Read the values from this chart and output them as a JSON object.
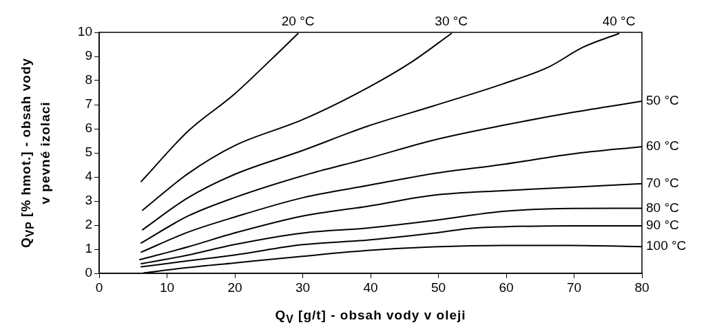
{
  "chart_data": {
    "type": "line",
    "xlabel": "Q$_{V}$ [g/t] - obsah vody v oleji",
    "ylabel": "Q$_{VP}$ [% hmot.] - obsah vody\nv pevné izolaci",
    "xlim": [
      0,
      80
    ],
    "ylim": [
      0,
      10
    ],
    "xticks": [
      0,
      10,
      20,
      30,
      40,
      50,
      60,
      70,
      80
    ],
    "yticks": [
      0,
      1,
      2,
      3,
      4,
      5,
      6,
      7,
      8,
      9,
      10
    ],
    "grid": false,
    "legend": false,
    "marker": "none",
    "line_style": "solid",
    "series": [
      {
        "name": "20 °C",
        "color": "#000000",
        "x": [
          6.2,
          13.1,
          19.9,
          25.3,
          29.3
        ],
        "values": [
          3.81,
          5.9,
          7.43,
          8.86,
          9.95
        ]
      },
      {
        "name": "30 °C",
        "color": "#000000",
        "x": [
          6.4,
          13.1,
          19.9,
          30,
          39.5,
          46,
          51.9
        ],
        "values": [
          2.62,
          4.14,
          5.29,
          6.38,
          7.69,
          8.76,
          9.95
        ]
      },
      {
        "name": "40 °C",
        "color": "#000000",
        "x": [
          6.4,
          13.1,
          19.9,
          30,
          39.5,
          49.3,
          59.5,
          66.3,
          71.3,
          76.6
        ],
        "values": [
          1.81,
          3.14,
          4.1,
          5.1,
          6.1,
          6.95,
          7.86,
          8.57,
          9.38,
          9.95
        ]
      },
      {
        "name": "50 °C",
        "color": "#000000",
        "x": [
          6.2,
          13.1,
          19.9,
          31.1,
          39.5,
          49.3,
          59.5,
          69.6,
          80
        ],
        "values": [
          1.26,
          2.38,
          3.14,
          4.14,
          4.76,
          5.53,
          6.14,
          6.67,
          7.14
        ]
      },
      {
        "name": "60 °C",
        "color": "#000000",
        "x": [
          6.2,
          13.1,
          19.9,
          30,
          39.5,
          49.3,
          59.5,
          69.6,
          80
        ],
        "values": [
          0.88,
          1.71,
          2.33,
          3.14,
          3.64,
          4.14,
          4.52,
          4.95,
          5.26
        ]
      },
      {
        "name": "70 °C",
        "color": "#000000",
        "x": [
          6.0,
          13.1,
          19.9,
          30,
          39.5,
          49.3,
          59.5,
          69.6,
          80
        ],
        "values": [
          0.57,
          1.1,
          1.67,
          2.38,
          2.78,
          3.24,
          3.43,
          3.57,
          3.72
        ]
      },
      {
        "name": "80 °C",
        "color": "#000000",
        "x": [
          6.2,
          13.1,
          19.9,
          30,
          39.5,
          49.3,
          59.5,
          69.6,
          80
        ],
        "values": [
          0.4,
          0.76,
          1.19,
          1.67,
          1.88,
          2.19,
          2.57,
          2.69,
          2.7
        ]
      },
      {
        "name": "90 °C",
        "color": "#000000",
        "x": [
          6.2,
          13.1,
          19.9,
          30,
          39.5,
          49.3,
          54.4,
          59.5,
          69.6,
          80
        ],
        "values": [
          0.27,
          0.52,
          0.76,
          1.19,
          1.38,
          1.67,
          1.86,
          1.93,
          1.97,
          1.97
        ]
      },
      {
        "name": "100 °C",
        "color": "#000000",
        "x": [
          6.6,
          13.1,
          19.9,
          30,
          39.5,
          49.3,
          59.5,
          69.6,
          80
        ],
        "values": [
          0.02,
          0.24,
          0.43,
          0.71,
          0.95,
          1.1,
          1.16,
          1.16,
          1.11
        ]
      }
    ]
  }
}
